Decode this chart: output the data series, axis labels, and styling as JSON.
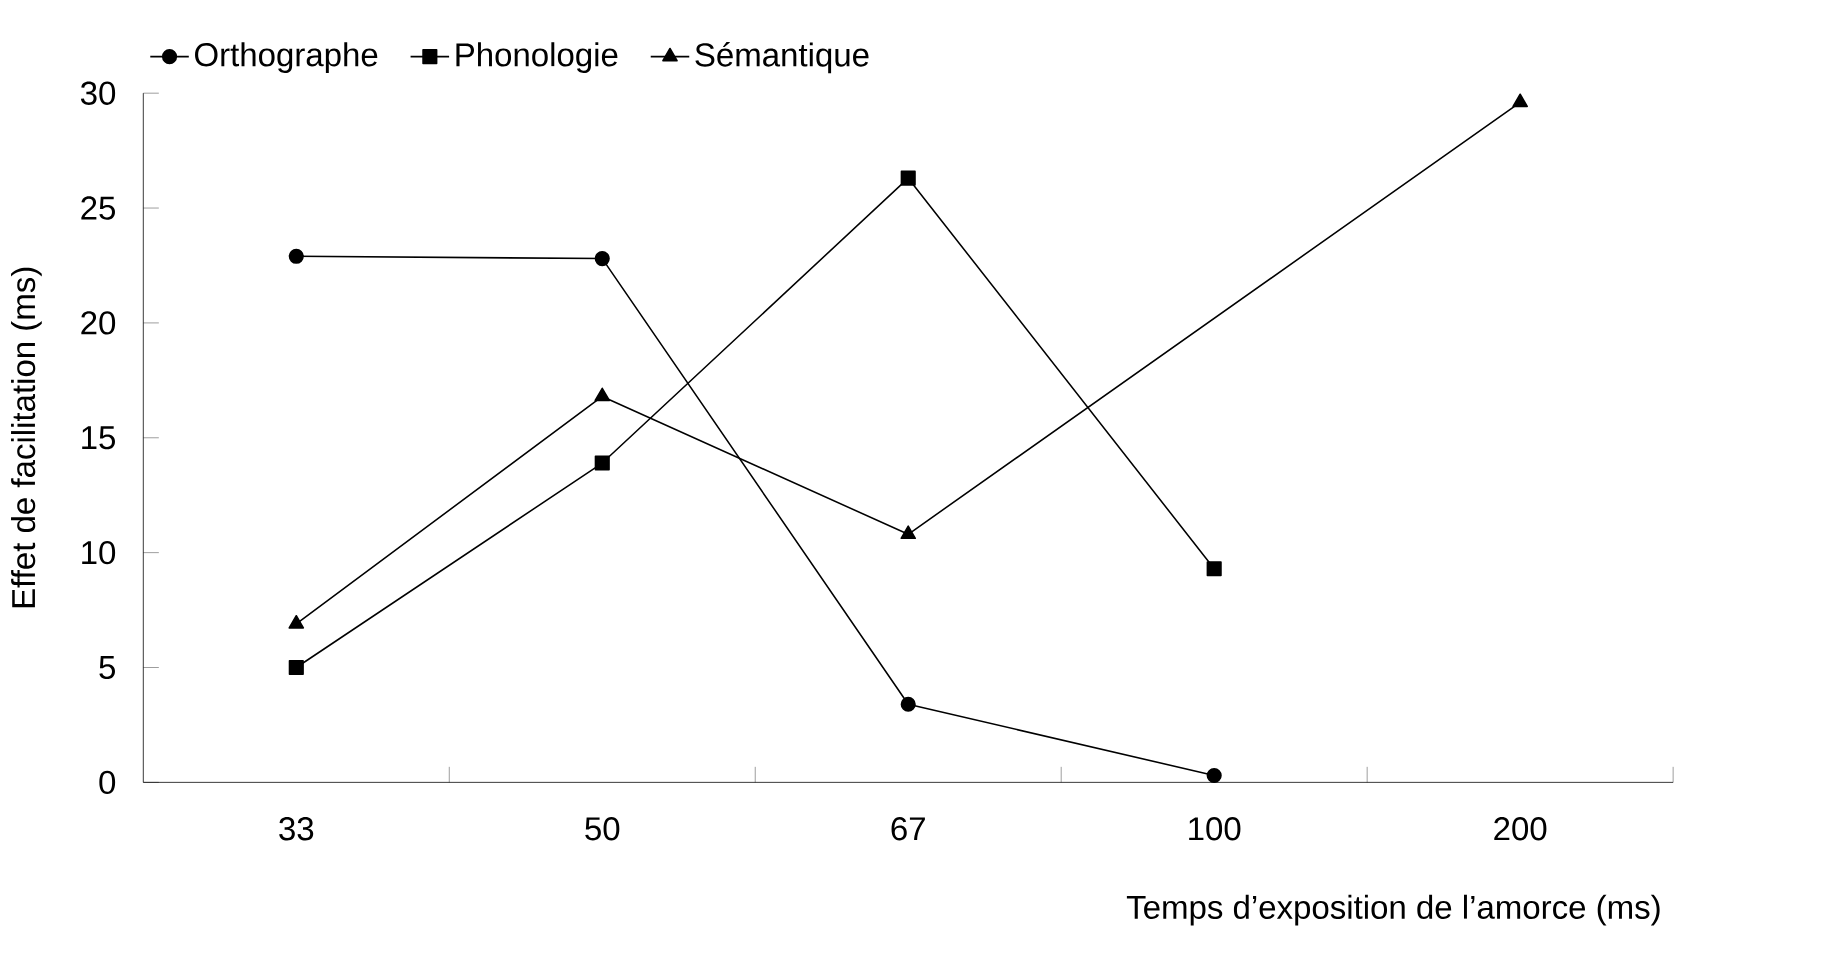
{
  "chart_data": {
    "type": "line",
    "xlabel": "Temps d’exposition de l’amorce (ms)",
    "ylabel": "Effet de facilitation (ms)",
    "categories": [
      "33",
      "50",
      "67",
      "100",
      "200"
    ],
    "series": [
      {
        "name": "Orthographe",
        "color": "#000000",
        "marker": "circle",
        "values": [
          22.9,
          22.8,
          3.4,
          0.3,
          null
        ]
      },
      {
        "name": "Phonologie",
        "color": "#000000",
        "marker": "square",
        "values": [
          5,
          13.9,
          26.3,
          9.3,
          null
        ]
      },
      {
        "name": "Sémantique",
        "color": "#000000",
        "marker": "triangle",
        "values": [
          6.9,
          16.8,
          10.8,
          null,
          29.6
        ]
      }
    ],
    "ylim": [
      0,
      30
    ],
    "yticks": [
      0,
      5,
      10,
      15,
      20,
      25,
      30
    ],
    "legend": "top",
    "line_style": "solid"
  }
}
